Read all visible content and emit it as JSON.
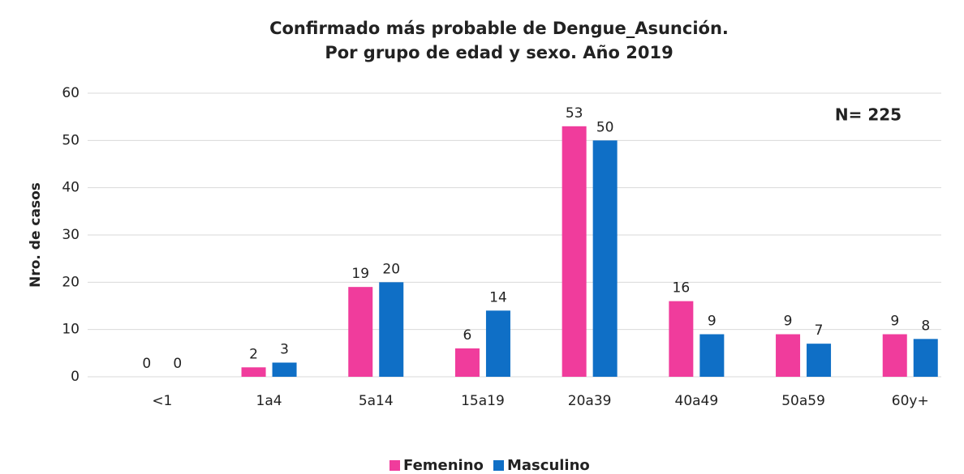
{
  "chart_data": {
    "type": "bar",
    "title": "Confirmado más probable de Dengue_Asunción.",
    "subtitle": "Por grupo de edad y sexo. Año 2019",
    "annotation": "N= 225",
    "y_label": "Nro. de casos",
    "categories": [
      "<1",
      "1a4",
      "5a14",
      "15a19",
      "20a39",
      "40a49",
      "50a59",
      "60y+"
    ],
    "series": [
      {
        "name": "Femenino",
        "color": "#f03c9c",
        "values": [
          0,
          2,
          19,
          6,
          53,
          16,
          9,
          9
        ]
      },
      {
        "name": "Masculino",
        "color": "#0f6fc6",
        "values": [
          0,
          3,
          20,
          14,
          50,
          9,
          7,
          8
        ]
      }
    ],
    "ylim": [
      0,
      60
    ],
    "yticks": [
      0,
      10,
      20,
      30,
      40,
      50,
      60
    ],
    "grid": true,
    "legend": "bottom"
  }
}
